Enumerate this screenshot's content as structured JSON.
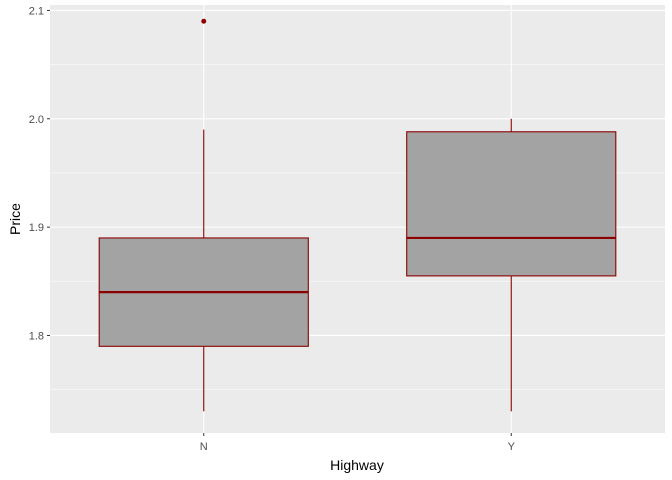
{
  "chart_data": {
    "type": "boxplot",
    "title": "",
    "xlabel": "Highway",
    "ylabel": "Price",
    "categories": [
      "N",
      "Y"
    ],
    "ylim": [
      1.71,
      2.105
    ],
    "yticks": [
      1.8,
      1.9,
      2.0,
      2.1
    ],
    "ytick_labels": [
      "1.8",
      "1.9",
      "2.0",
      "2.1"
    ],
    "grid": true,
    "boxes": [
      {
        "category": "N",
        "whisker_low": 1.73,
        "q1": 1.79,
        "median": 1.84,
        "q3": 1.89,
        "whisker_high": 1.99,
        "outliers": [
          2.09
        ]
      },
      {
        "category": "Y",
        "whisker_low": 1.73,
        "q1": 1.855,
        "median": 1.89,
        "q3": 1.988,
        "whisker_high": 2.0,
        "outliers": []
      }
    ],
    "colors": {
      "panel_background": "#ebebeb",
      "grid_major": "#ffffff",
      "box_fill": "#a3a3a3",
      "box_outline": "#8b0000"
    }
  }
}
